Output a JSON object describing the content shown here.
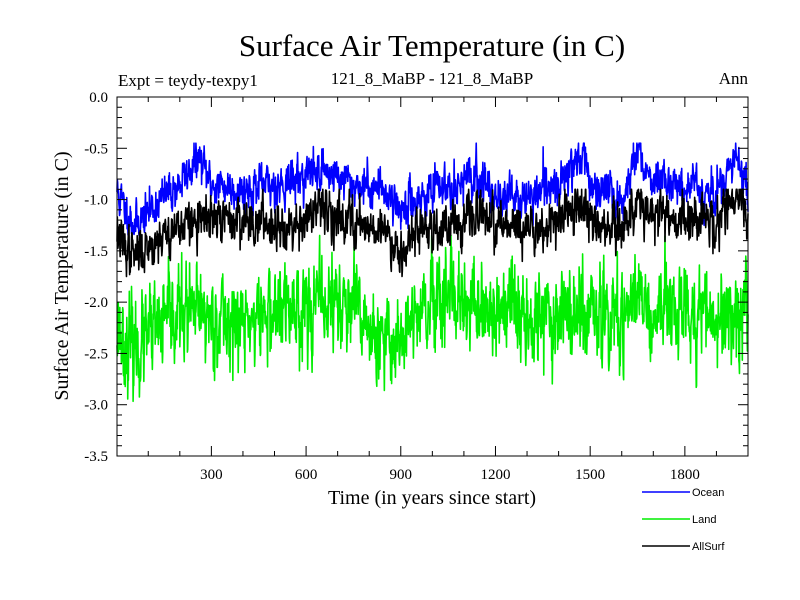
{
  "chart_data": {
    "type": "line",
    "title": "Surface Air Temperature (in C)",
    "subtitle_left": "Expt = teydy-texpy1",
    "subtitle_center": "121_8_MaBP - 121_8_MaBP",
    "subtitle_right": "Ann",
    "xlabel": "Time (in years since start)",
    "ylabel": "Surface Air Temperature (in C)",
    "xlim": [
      1,
      2000
    ],
    "ylim": [
      -3.5,
      0.0
    ],
    "x_ticks": [
      300,
      600,
      900,
      1200,
      1500,
      1800
    ],
    "y_ticks": [
      0.0,
      -0.5,
      -1.0,
      -1.5,
      -2.0,
      -2.5,
      -3.0,
      -3.5
    ],
    "y_tick_labels": [
      "0.0",
      "-0.5",
      "-1.0",
      "-1.5",
      "-2.0",
      "-2.5",
      "-3.0",
      "-3.5"
    ],
    "n_points": 2000,
    "legend_position": "bottom-right",
    "series": [
      {
        "name": "Ocean",
        "color": "#0000ff",
        "mean": -0.95,
        "approx_range": [
          -1.35,
          -0.45
        ],
        "anchor_points": [
          [
            1,
            -0.9
          ],
          [
            10,
            -1.0
          ],
          [
            60,
            -1.25
          ],
          [
            120,
            -1.05
          ],
          [
            200,
            -0.85
          ],
          [
            260,
            -0.6
          ],
          [
            300,
            -0.85
          ],
          [
            400,
            -0.9
          ],
          [
            520,
            -0.85
          ],
          [
            650,
            -0.7
          ],
          [
            750,
            -0.85
          ],
          [
            850,
            -0.9
          ],
          [
            900,
            -1.1
          ],
          [
            950,
            -1.0
          ],
          [
            1050,
            -0.85
          ],
          [
            1150,
            -0.8
          ],
          [
            1200,
            -0.95
          ],
          [
            1300,
            -1.0
          ],
          [
            1400,
            -0.85
          ],
          [
            1480,
            -0.5
          ],
          [
            1500,
            -0.9
          ],
          [
            1600,
            -1.0
          ],
          [
            1650,
            -0.55
          ],
          [
            1700,
            -0.8
          ],
          [
            1800,
            -0.85
          ],
          [
            1900,
            -0.95
          ],
          [
            1960,
            -0.6
          ],
          [
            2000,
            -0.9
          ]
        ],
        "noise_sd": 0.09
      },
      {
        "name": "Land",
        "color": "#00ee00",
        "mean": -2.1,
        "approx_range": [
          -3.2,
          -1.35
        ],
        "anchor_points": [
          [
            1,
            -2.2
          ],
          [
            20,
            -2.4
          ],
          [
            60,
            -2.45
          ],
          [
            120,
            -2.3
          ],
          [
            200,
            -2.1
          ],
          [
            300,
            -2.15
          ],
          [
            400,
            -2.2
          ],
          [
            550,
            -2.05
          ],
          [
            700,
            -2.0
          ],
          [
            800,
            -2.2
          ],
          [
            820,
            -2.5
          ],
          [
            900,
            -2.3
          ],
          [
            1000,
            -2.05
          ],
          [
            1200,
            -2.1
          ],
          [
            1350,
            -2.1
          ],
          [
            1500,
            -2.15
          ],
          [
            1600,
            -2.2
          ],
          [
            1650,
            -2.0
          ],
          [
            1700,
            -2.1
          ],
          [
            1800,
            -2.05
          ],
          [
            1900,
            -2.15
          ],
          [
            2000,
            -2.05
          ]
        ],
        "noise_sd": 0.2
      },
      {
        "name": "AllSurf",
        "color": "#000000",
        "mean": -1.25,
        "approx_range": [
          -1.75,
          -0.9
        ],
        "anchor_points": [
          [
            1,
            -1.3
          ],
          [
            20,
            -1.45
          ],
          [
            60,
            -1.55
          ],
          [
            120,
            -1.4
          ],
          [
            200,
            -1.25
          ],
          [
            300,
            -1.2
          ],
          [
            400,
            -1.2
          ],
          [
            550,
            -1.25
          ],
          [
            650,
            -1.1
          ],
          [
            750,
            -1.2
          ],
          [
            850,
            -1.3
          ],
          [
            900,
            -1.5
          ],
          [
            950,
            -1.3
          ],
          [
            1050,
            -1.25
          ],
          [
            1150,
            -1.15
          ],
          [
            1200,
            -1.25
          ],
          [
            1300,
            -1.3
          ],
          [
            1400,
            -1.2
          ],
          [
            1480,
            -1.05
          ],
          [
            1500,
            -1.2
          ],
          [
            1600,
            -1.3
          ],
          [
            1650,
            -1.0
          ],
          [
            1700,
            -1.15
          ],
          [
            1800,
            -1.2
          ],
          [
            1900,
            -1.25
          ],
          [
            1960,
            -1.0
          ],
          [
            2000,
            -1.2
          ]
        ],
        "noise_sd": 0.1
      }
    ]
  }
}
